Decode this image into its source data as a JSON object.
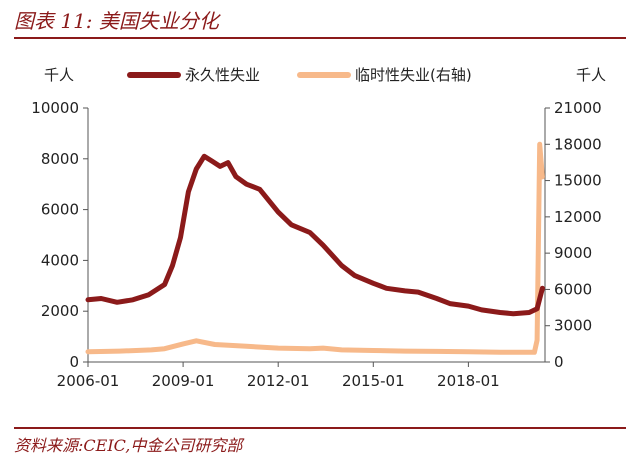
{
  "figure": {
    "title": "图表 11:  美国失业分化",
    "source": "资料来源:CEIC,中金公司研究部"
  },
  "colors": {
    "permanent": "#8b1a1a",
    "temporary": "#f7b98a",
    "rule": "#8b1a1a"
  },
  "chart_data": {
    "type": "line",
    "title": "美国失业分化",
    "y_left_unit": "千人",
    "y_right_unit": "千人",
    "y_left_lim": [
      0,
      10000
    ],
    "y_left_ticks": [
      "0",
      "2000",
      "4000",
      "6000",
      "8000",
      "10000"
    ],
    "y_right_lim": [
      0,
      21000
    ],
    "y_right_ticks": [
      "0",
      "3000",
      "6000",
      "9000",
      "12000",
      "15000",
      "18000",
      "21000"
    ],
    "x_lim": [
      "2006-01",
      "2020-06"
    ],
    "x_ticks": [
      "2006-01",
      "2009-01",
      "2012-01",
      "2015-01",
      "2018-01"
    ],
    "legend_position": "top",
    "grid": false,
    "series": [
      {
        "name": "永久性失业",
        "axis": "left",
        "points": [
          [
            "2006-01",
            2450
          ],
          [
            "2006-06",
            2500
          ],
          [
            "2006-12",
            2350
          ],
          [
            "2007-06",
            2450
          ],
          [
            "2007-12",
            2650
          ],
          [
            "2008-06",
            3050
          ],
          [
            "2008-09",
            3800
          ],
          [
            "2008-12",
            4900
          ],
          [
            "2009-03",
            6700
          ],
          [
            "2009-06",
            7600
          ],
          [
            "2009-09",
            8100
          ],
          [
            "2009-12",
            7900
          ],
          [
            "2010-03",
            7700
          ],
          [
            "2010-06",
            7850
          ],
          [
            "2010-09",
            7300
          ],
          [
            "2011-01",
            7000
          ],
          [
            "2011-06",
            6800
          ],
          [
            "2012-01",
            5900
          ],
          [
            "2012-06",
            5400
          ],
          [
            "2013-01",
            5100
          ],
          [
            "2013-06",
            4600
          ],
          [
            "2014-01",
            3800
          ],
          [
            "2014-06",
            3400
          ],
          [
            "2015-01",
            3100
          ],
          [
            "2015-06",
            2900
          ],
          [
            "2016-01",
            2800
          ],
          [
            "2016-06",
            2750
          ],
          [
            "2017-01",
            2500
          ],
          [
            "2017-06",
            2300
          ],
          [
            "2018-01",
            2200
          ],
          [
            "2018-06",
            2050
          ],
          [
            "2019-01",
            1950
          ],
          [
            "2019-06",
            1900
          ],
          [
            "2019-12",
            1950
          ],
          [
            "2020-03",
            2100
          ],
          [
            "2020-05",
            2900
          ]
        ]
      },
      {
        "name": "临时性失业(右轴)",
        "axis": "right",
        "points": [
          [
            "2006-01",
            850
          ],
          [
            "2007-01",
            900
          ],
          [
            "2008-01",
            1000
          ],
          [
            "2008-06",
            1100
          ],
          [
            "2009-01",
            1500
          ],
          [
            "2009-06",
            1750
          ],
          [
            "2010-01",
            1450
          ],
          [
            "2011-01",
            1300
          ],
          [
            "2012-01",
            1150
          ],
          [
            "2013-01",
            1100
          ],
          [
            "2013-06",
            1150
          ],
          [
            "2014-01",
            1000
          ],
          [
            "2015-01",
            950
          ],
          [
            "2016-01",
            900
          ],
          [
            "2017-01",
            880
          ],
          [
            "2018-01",
            850
          ],
          [
            "2019-01",
            800
          ],
          [
            "2020-02",
            800
          ],
          [
            "2020-03",
            1800
          ],
          [
            "2020-04",
            18000
          ],
          [
            "2020-05",
            15300
          ]
        ]
      }
    ]
  }
}
